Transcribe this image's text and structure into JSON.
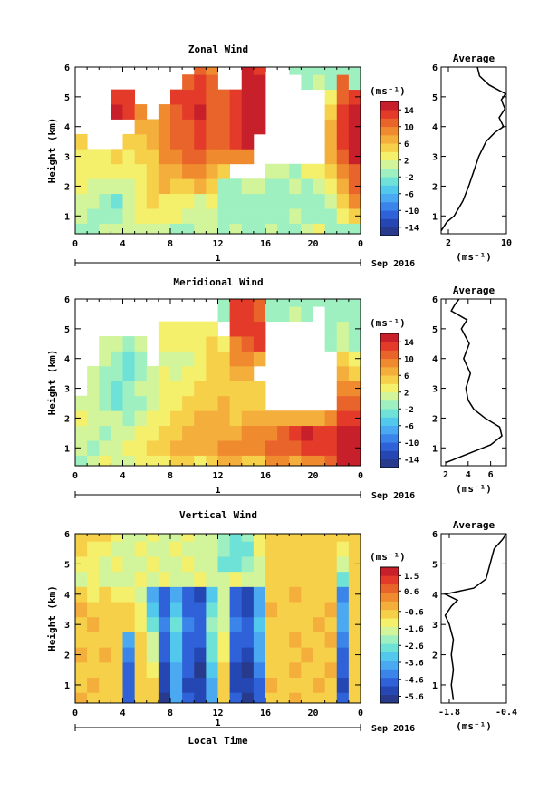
{
  "figure": {
    "xlabel": "Local Time",
    "date_label": "Sep 2016",
    "day_label": "1",
    "average_title": "Average",
    "unit_label": "(ms⁻¹)",
    "colormap": [
      "#283a8c",
      "#2547b4",
      "#2f62d8",
      "#3b85ea",
      "#4aa9f0",
      "#52c8ec",
      "#6fe2d8",
      "#9ff0c0",
      "#d2f49a",
      "#f4f06c",
      "#f7d04a",
      "#f4ae3c",
      "#ef8a2e",
      "#e8642a",
      "#e43a2a",
      "#c8202a"
    ]
  },
  "chart_data": [
    {
      "type": "heatmap",
      "title": "Zonal Wind",
      "xlabel": "",
      "ylabel": "Height (km)",
      "x_ticks": [
        "0",
        "4",
        "8",
        "12",
        "16",
        "20",
        "0"
      ],
      "y_ticks": [
        "1",
        "2",
        "3",
        "4",
        "5",
        "6"
      ],
      "xlim": [
        0,
        24
      ],
      "ylim": [
        0.4,
        6.0
      ],
      "colorbar": {
        "unit": "(ms⁻¹)",
        "ticks": [
          "14",
          "10",
          "6",
          "2",
          "-2",
          "-6",
          "-10",
          "-14"
        ],
        "min": -16,
        "max": 16
      },
      "x": [
        0,
        1,
        2,
        3,
        4,
        5,
        6,
        7,
        8,
        9,
        10,
        11,
        12,
        13,
        14,
        15,
        16,
        17,
        18,
        19,
        20,
        21,
        22,
        23
      ],
      "heights": [
        0.5,
        1.0,
        1.5,
        2.0,
        2.5,
        3.0,
        3.5,
        4.0,
        4.5,
        5.0,
        5.5,
        6.0
      ],
      "values": [
        [
          -2,
          -1,
          0,
          0,
          1,
          0,
          1,
          0,
          -1,
          -1,
          0,
          1,
          -1,
          0,
          -1,
          -1,
          0,
          -1,
          -1,
          0,
          2,
          -1,
          -2,
          -1
        ],
        [
          0,
          -1,
          -2,
          -1,
          1,
          2,
          3,
          2,
          2,
          1,
          0,
          0,
          -1,
          -1,
          -2,
          -1,
          -1,
          -1,
          0,
          -1,
          -1,
          -1,
          3,
          4
        ],
        [
          1,
          0,
          -2,
          -3,
          1,
          2,
          4,
          3,
          3,
          2,
          1,
          2,
          -2,
          -2,
          -1,
          -1,
          -2,
          -1,
          -1,
          -1,
          -1,
          1,
          5,
          8
        ],
        [
          2,
          1,
          0,
          0,
          1,
          2,
          4,
          6,
          5,
          5,
          6,
          4,
          -2,
          -2,
          0,
          1,
          -1,
          -1,
          0,
          -1,
          1,
          2,
          7,
          10
        ],
        [
          2,
          2,
          2,
          2,
          2,
          2,
          5,
          7,
          7,
          8,
          8,
          6,
          4,
          null,
          null,
          null,
          0,
          0,
          -1,
          2,
          3,
          4,
          9,
          11
        ],
        [
          3,
          3,
          3,
          4,
          3,
          4,
          5,
          8,
          9,
          10,
          11,
          8,
          8,
          8,
          8,
          null,
          null,
          null,
          null,
          null,
          null,
          6,
          10,
          14
        ],
        [
          4,
          null,
          null,
          null,
          4,
          5,
          6,
          9,
          10,
          11,
          13,
          10,
          10,
          12,
          14,
          null,
          null,
          null,
          null,
          null,
          null,
          7,
          12,
          14
        ],
        [
          null,
          null,
          null,
          null,
          null,
          6,
          7,
          9,
          10,
          11,
          13,
          10,
          10,
          13,
          15,
          15,
          null,
          null,
          null,
          null,
          null,
          6,
          12,
          14
        ],
        [
          null,
          null,
          null,
          14,
          12,
          8,
          null,
          9,
          11,
          12,
          14,
          11,
          10,
          12,
          15,
          14,
          null,
          null,
          null,
          null,
          null,
          4,
          12,
          14
        ],
        [
          null,
          null,
          null,
          13,
          12,
          null,
          null,
          null,
          12,
          12,
          13,
          11,
          10,
          12,
          15,
          15,
          null,
          null,
          null,
          null,
          null,
          2,
          11,
          13
        ],
        [
          null,
          null,
          null,
          null,
          null,
          null,
          null,
          null,
          null,
          11,
          12,
          10,
          null,
          null,
          14,
          14,
          null,
          null,
          null,
          -1,
          0,
          -1,
          10,
          -1
        ],
        [
          null,
          null,
          null,
          null,
          null,
          null,
          null,
          null,
          null,
          null,
          10,
          9,
          null,
          null,
          14,
          13,
          null,
          null,
          -1,
          -1,
          -1,
          -1,
          -1,
          -1
        ]
      ],
      "average": {
        "xlabel": "(ms⁻¹)",
        "x_ticks": [
          "2",
          "10"
        ],
        "xlim": [
          1,
          10
        ],
        "heights": [
          0.5,
          0.8,
          1.0,
          1.5,
          2.0,
          2.5,
          3.0,
          3.5,
          3.8,
          4.0,
          4.3,
          4.6,
          4.9,
          5.1,
          5.4,
          5.7,
          6.0
        ],
        "values": [
          1.0,
          1.8,
          2.8,
          4.0,
          4.8,
          5.5,
          6.2,
          7.2,
          8.4,
          9.6,
          9.0,
          9.8,
          9.3,
          9.9,
          7.6,
          6.3,
          6.0
        ]
      }
    },
    {
      "type": "heatmap",
      "title": "Meridional Wind",
      "xlabel": "",
      "ylabel": "Height (km)",
      "x_ticks": [
        "0",
        "4",
        "8",
        "12",
        "16",
        "20",
        "0"
      ],
      "y_ticks": [
        "1",
        "2",
        "3",
        "4",
        "5",
        "6"
      ],
      "xlim": [
        0,
        24
      ],
      "ylim": [
        0.4,
        6.0
      ],
      "colorbar": {
        "unit": "(ms⁻¹)",
        "ticks": [
          "14",
          "10",
          "6",
          "2",
          "-2",
          "-6",
          "-10",
          "-14"
        ],
        "min": -16,
        "max": 16
      },
      "x": [
        0,
        1,
        2,
        3,
        4,
        5,
        6,
        7,
        8,
        9,
        10,
        11,
        12,
        13,
        14,
        15,
        16,
        17,
        18,
        19,
        20,
        21,
        22,
        23
      ],
      "heights": [
        0.5,
        1.0,
        1.5,
        2.0,
        2.5,
        3.0,
        3.5,
        4.0,
        4.5,
        5.0,
        5.5,
        6.0
      ],
      "values": [
        [
          -2,
          0,
          2,
          1,
          0,
          2,
          3,
          3,
          4,
          4,
          3,
          5,
          6,
          6,
          5,
          5,
          8,
          8,
          7,
          8,
          8,
          10,
          14,
          15
        ],
        [
          0,
          -1,
          1,
          1,
          2,
          3,
          4,
          5,
          6,
          6,
          6,
          7,
          8,
          8,
          9,
          8,
          10,
          10,
          11,
          12,
          12,
          12,
          15,
          15
        ],
        [
          1,
          0,
          -1,
          0,
          1,
          2,
          3,
          4,
          5,
          6,
          7,
          6,
          7,
          7,
          8,
          8,
          9,
          10,
          12,
          14,
          13,
          12,
          15,
          14
        ],
        [
          2,
          1,
          0,
          0,
          -1,
          1,
          2,
          3,
          4,
          5,
          6,
          6,
          6,
          5,
          7,
          6,
          7,
          6,
          6,
          7,
          7,
          8,
          13,
          12
        ],
        [
          1,
          0,
          -1,
          -3,
          -2,
          -1,
          1,
          3,
          3,
          4,
          4,
          5,
          6,
          5,
          5,
          5,
          null,
          null,
          null,
          null,
          null,
          null,
          10,
          10
        ],
        [
          null,
          1,
          -2,
          -3,
          -2,
          0,
          1,
          2,
          2,
          3,
          4,
          4,
          4,
          5,
          5,
          4,
          null,
          null,
          null,
          null,
          null,
          null,
          8,
          8
        ],
        [
          null,
          0,
          -1,
          -2,
          -4,
          -1,
          0,
          2,
          1,
          2,
          3,
          4,
          4,
          6,
          7,
          null,
          null,
          null,
          null,
          null,
          null,
          null,
          6,
          4
        ],
        [
          null,
          null,
          0,
          -1,
          -3,
          -1,
          null,
          1,
          1,
          1,
          3,
          5,
          4,
          8,
          8,
          7,
          null,
          null,
          null,
          null,
          null,
          null,
          4,
          2
        ],
        [
          null,
          null,
          1,
          0,
          -1,
          0,
          null,
          2,
          2,
          2,
          3,
          4,
          2,
          9,
          10,
          12,
          null,
          null,
          null,
          null,
          null,
          -1,
          0,
          -1
        ],
        [
          null,
          null,
          null,
          null,
          null,
          null,
          null,
          2,
          2,
          3,
          3,
          2,
          null,
          12,
          13,
          12,
          null,
          null,
          null,
          null,
          null,
          -1,
          0,
          -1
        ],
        [
          null,
          null,
          null,
          null,
          null,
          null,
          null,
          null,
          null,
          null,
          null,
          null,
          -1,
          13,
          12,
          10,
          -2,
          -1,
          0,
          -1,
          null,
          -1,
          -1,
          -1
        ],
        [
          null,
          null,
          null,
          null,
          null,
          null,
          null,
          null,
          null,
          null,
          null,
          null,
          -1,
          12,
          12,
          11,
          -1,
          -1,
          -1,
          -2,
          -1,
          -1,
          -1,
          -1
        ]
      ],
      "average": {
        "xlabel": "(ms⁻¹)",
        "x_ticks": [
          "2",
          "4",
          "6"
        ],
        "xlim": [
          1.6,
          7.4
        ],
        "heights": [
          0.5,
          0.8,
          1.1,
          1.4,
          1.7,
          2.0,
          2.3,
          2.6,
          3.0,
          3.5,
          4.0,
          4.5,
          5.0,
          5.3,
          5.6,
          5.8,
          6.0
        ],
        "values": [
          2.0,
          4.0,
          6.0,
          7.0,
          6.8,
          5.5,
          4.5,
          4.0,
          3.8,
          4.2,
          3.6,
          4.1,
          3.4,
          3.9,
          2.5,
          2.8,
          3.2
        ]
      }
    },
    {
      "type": "heatmap",
      "title": "Vertical Wind",
      "xlabel": "Local Time",
      "ylabel": "Height (km)",
      "x_ticks": [
        "0",
        "4",
        "8",
        "12",
        "16",
        "20",
        "0"
      ],
      "y_ticks": [
        "1",
        "2",
        "3",
        "4",
        "5",
        "6"
      ],
      "xlim": [
        0,
        24
      ],
      "ylim": [
        0.4,
        6.0
      ],
      "colorbar": {
        "unit": "(ms⁻¹)",
        "ticks": [
          "1.5",
          "0.6",
          "-0.6",
          "-1.6",
          "-2.6",
          "-3.6",
          "-4.6",
          "-5.6"
        ],
        "min": -6.0,
        "max": 2.0
      },
      "x": [
        0,
        1,
        2,
        3,
        4,
        5,
        6,
        7,
        8,
        9,
        10,
        11,
        12,
        13,
        14,
        15,
        16,
        17,
        18,
        19,
        20,
        21,
        22,
        23
      ],
      "heights": [
        0.5,
        1.0,
        1.5,
        2.0,
        2.5,
        3.0,
        3.5,
        4.0,
        4.5,
        5.0,
        5.5,
        6.0
      ],
      "values": [
        [
          -0.5,
          -0.8,
          -0.6,
          -1.0,
          -5.0,
          -0.8,
          -0.6,
          -5.6,
          -3.8,
          -5.0,
          -5.2,
          -4.0,
          -0.8,
          -5.0,
          -5.6,
          -4.8,
          -0.6,
          -0.8,
          -0.5,
          -0.8,
          -0.6,
          -0.7,
          -5.0,
          -0.6
        ],
        [
          -0.6,
          -0.5,
          -0.8,
          -0.9,
          -4.8,
          -0.6,
          -1.0,
          -5.4,
          -4.0,
          -5.2,
          -5.4,
          -3.6,
          -0.9,
          -5.2,
          -5.4,
          -4.6,
          -0.5,
          -0.6,
          -0.6,
          -0.7,
          -0.5,
          -0.6,
          -5.2,
          -0.8
        ],
        [
          -0.7,
          -0.6,
          -0.6,
          -0.8,
          -4.6,
          -0.8,
          -1.2,
          -5.2,
          -3.8,
          -5.0,
          -5.6,
          -3.2,
          -1.0,
          -5.4,
          -5.6,
          -4.4,
          -0.6,
          -0.8,
          -0.5,
          -0.6,
          -0.8,
          -0.5,
          -5.0,
          -0.7
        ],
        [
          -0.5,
          -0.8,
          -0.5,
          -0.7,
          -4.2,
          -0.9,
          -1.6,
          -5.0,
          -3.4,
          -4.8,
          -5.2,
          -3.0,
          -1.2,
          -5.0,
          -5.4,
          -4.0,
          -0.7,
          -0.6,
          -0.6,
          -0.5,
          -0.7,
          -0.6,
          -4.6,
          -0.6
        ],
        [
          -0.6,
          -0.6,
          -0.7,
          -0.9,
          -3.6,
          -1.0,
          -2.0,
          -4.6,
          -3.2,
          -4.6,
          -5.0,
          -2.6,
          -1.4,
          -4.6,
          -5.0,
          -3.6,
          -0.8,
          -0.7,
          -0.5,
          -0.6,
          -0.6,
          -0.5,
          -4.2,
          -0.8
        ],
        [
          -0.7,
          -0.5,
          -0.6,
          -0.8,
          -0.9,
          -1.2,
          -2.6,
          -4.4,
          -3.0,
          -4.4,
          -4.8,
          -2.4,
          -1.6,
          -4.4,
          -4.8,
          -3.4,
          -0.6,
          -0.8,
          -0.6,
          -0.8,
          -0.5,
          -0.6,
          -3.8,
          -0.6
        ],
        [
          -0.5,
          -0.6,
          -0.8,
          -0.7,
          -1.0,
          -1.4,
          -3.2,
          -4.8,
          -3.4,
          -4.8,
          -5.0,
          -2.8,
          -1.8,
          -4.8,
          -5.2,
          -3.8,
          -0.5,
          -0.7,
          -0.6,
          -0.6,
          -0.7,
          -0.5,
          -4.0,
          -0.7
        ],
        [
          -1.0,
          -1.2,
          -1.0,
          -1.4,
          -1.2,
          -1.6,
          -4.0,
          -5.0,
          -3.6,
          -5.0,
          -5.4,
          -3.2,
          -2.0,
          -5.0,
          -5.4,
          -4.0,
          -0.6,
          -0.6,
          -0.5,
          -0.6,
          -0.6,
          -0.6,
          -4.4,
          -0.8
        ],
        [
          -1.6,
          -1.4,
          -1.8,
          -1.6,
          -1.6,
          -1.4,
          -1.6,
          -1.4,
          -1.8,
          -1.6,
          -1.4,
          -1.6,
          -1.8,
          -1.4,
          -1.6,
          -1.8,
          -0.8,
          -0.6,
          -0.7,
          -0.6,
          -0.6,
          -0.7,
          -2.6,
          -0.6
        ],
        [
          -1.2,
          -1.4,
          -1.6,
          -1.2,
          -1.8,
          -1.6,
          -1.4,
          -1.8,
          -1.6,
          -1.4,
          -1.8,
          -1.6,
          -2.6,
          -2.8,
          -2.4,
          -1.6,
          -0.7,
          -0.8,
          -0.6,
          -0.7,
          -0.8,
          -0.6,
          -1.8,
          -0.7
        ],
        [
          -0.8,
          -1.2,
          -1.4,
          -1.6,
          -1.8,
          -1.4,
          -1.6,
          -1.8,
          -1.4,
          -1.6,
          -1.8,
          -1.8,
          -2.4,
          -2.8,
          -2.6,
          -1.4,
          -0.6,
          -0.7,
          -0.8,
          -0.6,
          -0.7,
          -0.8,
          -1.4,
          -0.8
        ],
        [
          -0.6,
          -0.8,
          -1.0,
          -1.2,
          -1.6,
          -1.8,
          -1.4,
          -1.6,
          -1.8,
          -1.4,
          -1.6,
          -1.8,
          -2.2,
          -2.6,
          -2.4,
          -1.2,
          -0.7,
          -0.6,
          -0.7,
          -0.8,
          -0.6,
          -0.7,
          -1.0,
          -0.7
        ]
      ],
      "average": {
        "xlabel": "(ms⁻¹)",
        "x_ticks": [
          "-1.8",
          "-0.4"
        ],
        "xlim": [
          -2.0,
          -0.4
        ],
        "heights": [
          0.5,
          1.0,
          1.5,
          2.0,
          2.5,
          3.0,
          3.3,
          3.6,
          3.8,
          4.0,
          4.2,
          4.5,
          5.0,
          5.5,
          5.8,
          6.0
        ],
        "values": [
          -1.7,
          -1.75,
          -1.7,
          -1.75,
          -1.7,
          -1.8,
          -1.9,
          -1.75,
          -1.6,
          -1.9,
          -1.2,
          -0.9,
          -0.8,
          -0.7,
          -0.5,
          -0.4
        ]
      }
    }
  ]
}
